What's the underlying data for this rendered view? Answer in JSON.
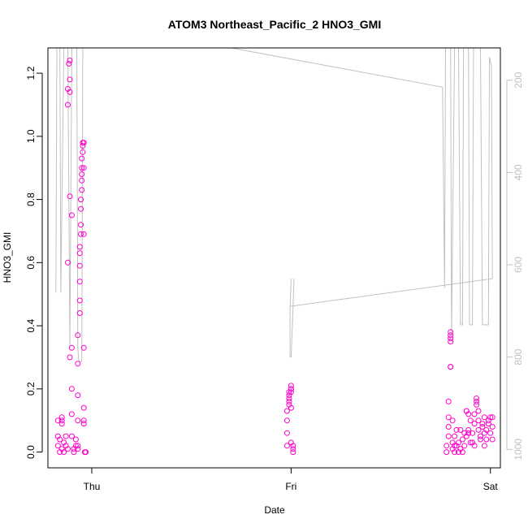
{
  "chart_data": {
    "type": "scatter",
    "title": "ATOM3 Northeast_Pacific_2 HNO3_GMI",
    "xlabel": "Date",
    "ylabel": "HNO3_GMI",
    "x_ticks": [
      "Thu",
      "Fri",
      "Sat"
    ],
    "y_ticks": [
      "0.0",
      "0.2",
      "0.4",
      "0.6",
      "0.8",
      "1.0",
      "1.2"
    ],
    "y2_ticks": [
      "200",
      "400",
      "600",
      "800",
      "1000"
    ],
    "ylim": [
      -0.05,
      1.28
    ],
    "y2lim": [
      1040,
      130
    ],
    "xlim": [
      -0.22,
      2.05
    ],
    "y2_reversed": true,
    "grid": false,
    "colors": {
      "points": "#ff00cc",
      "pressure_line": "#c0c0c0"
    },
    "series": [
      {
        "values": [
          {
            "x": -0.17,
            "y": 0.1
          },
          {
            "x": -0.17,
            "y": 0.05
          },
          {
            "x": -0.17,
            "y": 0.02
          },
          {
            "x": -0.16,
            "y": 0.04
          },
          {
            "x": -0.16,
            "y": 0.0
          },
          {
            "x": -0.15,
            "y": 0.11
          },
          {
            "x": -0.15,
            "y": 0.1
          },
          {
            "x": -0.15,
            "y": 0.09
          },
          {
            "x": -0.15,
            "y": 0.01
          },
          {
            "x": -0.14,
            "y": 0.03
          },
          {
            "x": -0.14,
            "y": 0.0
          },
          {
            "x": -0.13,
            "y": 0.02
          },
          {
            "x": -0.13,
            "y": 0.05
          },
          {
            "x": -0.12,
            "y": 0.01
          },
          {
            "x": -0.12,
            "y": 0.6
          },
          {
            "x": -0.12,
            "y": 1.1
          },
          {
            "x": -0.12,
            "y": 1.15
          },
          {
            "x": -0.115,
            "y": 1.23
          },
          {
            "x": -0.11,
            "y": 1.24
          },
          {
            "x": -0.11,
            "y": 1.18
          },
          {
            "x": -0.11,
            "y": 1.14
          },
          {
            "x": -0.11,
            "y": 0.81
          },
          {
            "x": -0.11,
            "y": 0.3
          },
          {
            "x": -0.1,
            "y": 0.75
          },
          {
            "x": -0.1,
            "y": 0.33
          },
          {
            "x": -0.1,
            "y": 0.2
          },
          {
            "x": -0.1,
            "y": 0.12
          },
          {
            "x": -0.1,
            "y": 0.05
          },
          {
            "x": -0.09,
            "y": 0.0
          },
          {
            "x": -0.09,
            "y": 0.01
          },
          {
            "x": -0.08,
            "y": 0.02
          },
          {
            "x": -0.08,
            "y": 0.04
          },
          {
            "x": -0.07,
            "y": 0.01
          },
          {
            "x": -0.07,
            "y": 0.02
          },
          {
            "x": -0.07,
            "y": 0.1
          },
          {
            "x": -0.07,
            "y": 0.18
          },
          {
            "x": -0.07,
            "y": 0.28
          },
          {
            "x": -0.07,
            "y": 0.37
          },
          {
            "x": -0.06,
            "y": 0.44
          },
          {
            "x": -0.06,
            "y": 0.48
          },
          {
            "x": -0.06,
            "y": 0.54
          },
          {
            "x": -0.06,
            "y": 0.59
          },
          {
            "x": -0.06,
            "y": 0.63
          },
          {
            "x": -0.06,
            "y": 0.65
          },
          {
            "x": -0.055,
            "y": 0.69
          },
          {
            "x": -0.055,
            "y": 0.72
          },
          {
            "x": -0.055,
            "y": 0.77
          },
          {
            "x": -0.055,
            "y": 0.8
          },
          {
            "x": -0.05,
            "y": 0.83
          },
          {
            "x": -0.05,
            "y": 0.86
          },
          {
            "x": -0.05,
            "y": 0.88
          },
          {
            "x": -0.05,
            "y": 0.9
          },
          {
            "x": -0.05,
            "y": 0.93
          },
          {
            "x": -0.045,
            "y": 0.95
          },
          {
            "x": -0.045,
            "y": 0.97
          },
          {
            "x": -0.045,
            "y": 0.98
          },
          {
            "x": -0.04,
            "y": 0.98
          },
          {
            "x": -0.04,
            "y": 0.9
          },
          {
            "x": -0.04,
            "y": 0.69
          },
          {
            "x": -0.04,
            "y": 0.33
          },
          {
            "x": -0.04,
            "y": 0.14
          },
          {
            "x": -0.04,
            "y": 0.1
          },
          {
            "x": -0.04,
            "y": 0.09
          },
          {
            "x": -0.035,
            "y": 0.0
          },
          {
            "x": -0.03,
            "y": 0.0
          },
          {
            "x": 0.98,
            "y": 0.02
          },
          {
            "x": 0.98,
            "y": 0.06
          },
          {
            "x": 0.98,
            "y": 0.1
          },
          {
            "x": 0.98,
            "y": 0.13
          },
          {
            "x": 0.99,
            "y": 0.15
          },
          {
            "x": 0.99,
            "y": 0.16
          },
          {
            "x": 0.99,
            "y": 0.17
          },
          {
            "x": 0.99,
            "y": 0.18
          },
          {
            "x": 0.99,
            "y": 0.19
          },
          {
            "x": 1.0,
            "y": 0.19
          },
          {
            "x": 1.0,
            "y": 0.2
          },
          {
            "x": 1.0,
            "y": 0.2
          },
          {
            "x": 1.0,
            "y": 0.21
          },
          {
            "x": 1.0,
            "y": 0.14
          },
          {
            "x": 1.0,
            "y": 0.03
          },
          {
            "x": 1.01,
            "y": 0.02
          },
          {
            "x": 1.01,
            "y": 0.01
          },
          {
            "x": 1.01,
            "y": 0.0
          },
          {
            "x": 1.78,
            "y": 0.0
          },
          {
            "x": 1.78,
            "y": 0.02
          },
          {
            "x": 1.79,
            "y": 0.05
          },
          {
            "x": 1.79,
            "y": 0.08
          },
          {
            "x": 1.79,
            "y": 0.11
          },
          {
            "x": 1.79,
            "y": 0.16
          },
          {
            "x": 1.8,
            "y": 0.27
          },
          {
            "x": 1.8,
            "y": 0.27
          },
          {
            "x": 1.8,
            "y": 0.35
          },
          {
            "x": 1.8,
            "y": 0.37
          },
          {
            "x": 1.8,
            "y": 0.38
          },
          {
            "x": 1.8,
            "y": 0.36
          },
          {
            "x": 1.81,
            "y": 0.1
          },
          {
            "x": 1.81,
            "y": 0.03
          },
          {
            "x": 1.81,
            "y": 0.01
          },
          {
            "x": 1.82,
            "y": 0.0
          },
          {
            "x": 1.82,
            "y": 0.02
          },
          {
            "x": 1.82,
            "y": 0.05
          },
          {
            "x": 1.83,
            "y": 0.07
          },
          {
            "x": 1.83,
            "y": 0.02
          },
          {
            "x": 1.84,
            "y": 0.0
          },
          {
            "x": 1.84,
            "y": 0.03
          },
          {
            "x": 1.85,
            "y": 0.07
          },
          {
            "x": 1.85,
            "y": 0.01
          },
          {
            "x": 1.86,
            "y": 0.0
          },
          {
            "x": 1.86,
            "y": 0.04
          },
          {
            "x": 1.87,
            "y": 0.06
          },
          {
            "x": 1.87,
            "y": 0.02
          },
          {
            "x": 1.88,
            "y": 0.05
          },
          {
            "x": 1.88,
            "y": 0.13
          },
          {
            "x": 1.88,
            "y": 0.13
          },
          {
            "x": 1.89,
            "y": 0.06
          },
          {
            "x": 1.89,
            "y": 0.12
          },
          {
            "x": 1.89,
            "y": 0.07
          },
          {
            "x": 1.9,
            "y": 0.03
          },
          {
            "x": 1.9,
            "y": 0.1
          },
          {
            "x": 1.91,
            "y": 0.06
          },
          {
            "x": 1.91,
            "y": 0.03
          },
          {
            "x": 1.92,
            "y": 0.02
          },
          {
            "x": 1.92,
            "y": 0.09
          },
          {
            "x": 1.92,
            "y": 0.12
          },
          {
            "x": 1.93,
            "y": 0.17
          },
          {
            "x": 1.93,
            "y": 0.16
          },
          {
            "x": 1.93,
            "y": 0.15
          },
          {
            "x": 1.94,
            "y": 0.13
          },
          {
            "x": 1.94,
            "y": 0.1
          },
          {
            "x": 1.94,
            "y": 0.07
          },
          {
            "x": 1.95,
            "y": 0.04
          },
          {
            "x": 1.95,
            "y": 0.05
          },
          {
            "x": 1.96,
            "y": 0.08
          },
          {
            "x": 1.96,
            "y": 0.09
          },
          {
            "x": 1.97,
            "y": 0.11
          },
          {
            "x": 1.97,
            "y": 0.06
          },
          {
            "x": 1.97,
            "y": 0.02
          },
          {
            "x": 1.98,
            "y": 0.04
          },
          {
            "x": 1.98,
            "y": 0.07
          },
          {
            "x": 1.99,
            "y": 0.1
          },
          {
            "x": 1.99,
            "y": 0.09
          },
          {
            "x": 2.0,
            "y": 0.06
          },
          {
            "x": 2.0,
            "y": 0.11
          },
          {
            "x": 2.01,
            "y": 0.08
          },
          {
            "x": 2.01,
            "y": 0.04
          },
          {
            "x": 2.01,
            "y": 0.11
          }
        ]
      },
      {
        "axis": "right",
        "values": [
          {
            "x": -0.18,
            "y": 660
          },
          {
            "x": -0.175,
            "y": 130
          },
          {
            "x": -0.16,
            "y": 130
          },
          {
            "x": -0.155,
            "y": 660
          },
          {
            "x": -0.14,
            "y": 130
          },
          {
            "x": -0.12,
            "y": 130
          },
          {
            "x": -0.11,
            "y": 780
          },
          {
            "x": -0.1,
            "y": 130
          },
          {
            "x": -0.075,
            "y": 130
          },
          {
            "x": -0.07,
            "y": 780
          },
          {
            "x": -0.065,
            "y": 810
          },
          {
            "x": -0.05,
            "y": 810
          },
          {
            "x": -0.045,
            "y": 130
          },
          {
            "x": -0.02,
            "y": 130
          },
          {
            "x": 0.7,
            "y": 130
          },
          {
            "x": 1.76,
            "y": 215
          },
          {
            "x": 1.77,
            "y": 650
          },
          {
            "x": 1.775,
            "y": 130
          },
          {
            "x": 1.8,
            "y": 130
          },
          {
            "x": 1.805,
            "y": 750
          },
          {
            "x": 1.82,
            "y": 130
          },
          {
            "x": 1.84,
            "y": 130
          },
          {
            "x": 1.85,
            "y": 730
          },
          {
            "x": 1.86,
            "y": 730
          },
          {
            "x": 1.865,
            "y": 130
          },
          {
            "x": 1.89,
            "y": 130
          },
          {
            "x": 1.895,
            "y": 730
          },
          {
            "x": 1.91,
            "y": 730
          },
          {
            "x": 1.915,
            "y": 130
          },
          {
            "x": 1.95,
            "y": 130
          },
          {
            "x": 1.96,
            "y": 730
          },
          {
            "x": 1.99,
            "y": 730
          },
          {
            "x": 1.995,
            "y": 150
          },
          {
            "x": 2.005,
            "y": 170
          },
          {
            "x": 2.01,
            "y": 630
          },
          {
            "x": 0.995,
            "y": 690
          },
          {
            "x": 1.0,
            "y": 630
          }
        ]
      },
      {
        "axis": "right",
        "values": [
          {
            "x": 0.995,
            "y": 690
          },
          {
            "x": 0.995,
            "y": 800
          },
          {
            "x": 1.0,
            "y": 800
          },
          {
            "x": 1.01,
            "y": 690
          },
          {
            "x": 1.015,
            "y": 630
          }
        ]
      }
    ]
  }
}
